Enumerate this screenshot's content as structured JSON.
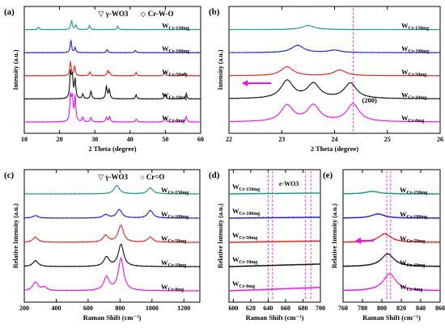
{
  "panels": [
    {
      "id": "a",
      "label": "(a)",
      "xlabel": "2 Theta (degree)",
      "ylabel": "Intensity (a.u.)",
      "xlim": [
        10,
        60
      ],
      "xticks": [
        10,
        20,
        30,
        40,
        50,
        60
      ],
      "legend": [
        {
          "symbol": "▽",
          "text": "γ-WO3"
        },
        {
          "symbol": "◇",
          "text": "Cr-W-O"
        }
      ]
    },
    {
      "id": "b",
      "label": "(b)",
      "xlabel": "2 Theta (degree)",
      "ylabel": "Intensity (a.u.)",
      "xlim": [
        22,
        26
      ],
      "xticks": [
        22,
        23,
        24,
        25,
        26
      ],
      "annotation": "(200)",
      "reference_line_x": 24.35
    },
    {
      "id": "c",
      "label": "(c)",
      "xlabel": "Raman Shift (cm⁻¹)",
      "ylabel": "Relative Intensity (a.u.)",
      "xlim": [
        200,
        1300
      ],
      "xticks": [
        200,
        400,
        600,
        800,
        1000,
        1200
      ],
      "legend": [
        {
          "symbol": "▽",
          "text": "γ-WO3"
        },
        {
          "symbol": "○",
          "text": "Cr=O"
        }
      ]
    },
    {
      "id": "d",
      "label": "(d)",
      "xlabel": "Raman Shift (cm⁻¹)",
      "ylabel": "Relative Intensity (a.u.)",
      "xlim": [
        595,
        700
      ],
      "xticks": [
        600,
        620,
        640,
        660,
        680,
        700
      ],
      "annotation": "ε-WO3",
      "reference_lines_x": [
        640,
        645,
        683,
        689
      ]
    },
    {
      "id": "e",
      "label": "(e)",
      "xlabel": "Raman Shift (cm⁻¹)",
      "ylabel": "Relative Intensity (a.u.)",
      "xlim": [
        760,
        860
      ],
      "xticks": [
        760,
        780,
        800,
        820,
        840,
        860
      ],
      "reference_lines_x": [
        805,
        809
      ]
    }
  ],
  "series_labels": [
    "W",
    "W",
    "W",
    "W",
    "W"
  ],
  "series_subscripts": [
    "Cr-150mg",
    "Cr-100mg",
    "Cr-50mg",
    "Cr-10mg",
    "Cr-0mg"
  ],
  "colors": {
    "Cr-150mg": "#1a9a8a",
    "Cr-100mg": "#1f1fe0",
    "Cr-50mg": "#ee2222",
    "Cr-10mg": "#111111",
    "Cr-0mg": "#ee11ee",
    "arrow": "#ee11ee",
    "refline": "#ee11ee"
  },
  "chart_data": [
    {
      "panel": "a",
      "type": "line",
      "xlabel": "2 Theta (degree)",
      "ylabel": "Intensity (a.u.)",
      "xlim": [
        10,
        60
      ],
      "series": [
        {
          "name": "WCr-150mg",
          "peaks": [
            [
              14,
              0.15
            ],
            [
              23.4,
              0.6
            ],
            [
              24.6,
              0.3
            ],
            [
              28.5,
              0.25
            ],
            [
              36.5,
              0.2
            ]
          ],
          "offset": 4
        },
        {
          "name": "WCr-100mg",
          "peaks": [
            [
              23.2,
              0.8
            ],
            [
              24.4,
              0.3
            ],
            [
              33.5,
              0.2
            ],
            [
              41.5,
              0.15
            ]
          ],
          "offset": 3
        },
        {
          "name": "WCr-50mg",
          "peaks": [
            [
              23.1,
              0.9
            ],
            [
              24.3,
              0.6
            ],
            [
              28.6,
              0.25
            ],
            [
              33.6,
              0.3
            ],
            [
              34.2,
              0.2
            ],
            [
              41.7,
              0.2
            ],
            [
              49.8,
              0.2
            ],
            [
              55.5,
              0.2
            ]
          ],
          "offset": 2
        },
        {
          "name": "WCr-10mg",
          "peaks": [
            [
              23.1,
              1.6
            ],
            [
              23.6,
              1.4
            ],
            [
              24.4,
              1.2
            ],
            [
              26.6,
              0.3
            ],
            [
              28.9,
              0.5
            ],
            [
              33.3,
              0.8
            ],
            [
              34.1,
              0.6
            ],
            [
              41.7,
              0.25
            ],
            [
              49.9,
              0.3
            ],
            [
              55.9,
              0.35
            ]
          ],
          "offset": 1
        },
        {
          "name": "WCr-0mg",
          "peaks": [
            [
              23.1,
              1.6
            ],
            [
              23.6,
              1.5
            ],
            [
              24.4,
              1.6
            ],
            [
              26.6,
              0.3
            ],
            [
              28.9,
              0.3
            ],
            [
              33.3,
              0.3
            ],
            [
              34.2,
              0.35
            ],
            [
              41.8,
              0.2
            ],
            [
              49.9,
              0.3
            ],
            [
              55.9,
              0.35
            ]
          ],
          "offset": 0
        }
      ]
    },
    {
      "panel": "b",
      "type": "line",
      "xlabel": "2 Theta (degree)",
      "ylabel": "Intensity (a.u.)",
      "xlim": [
        22,
        26
      ],
      "series": [
        {
          "name": "WCr-150mg",
          "peaks": [
            [
              23.5,
              0.25
            ]
          ],
          "offset": 4
        },
        {
          "name": "WCr-100mg",
          "peaks": [
            [
              23.3,
              0.45
            ],
            [
              24.0,
              0.15
            ]
          ],
          "offset": 3
        },
        {
          "name": "WCr-50mg",
          "peaks": [
            [
              23.1,
              0.55
            ],
            [
              24.1,
              0.35
            ]
          ],
          "offset": 2
        },
        {
          "name": "WCr-10mg",
          "peaks": [
            [
              23.1,
              1.1
            ],
            [
              23.6,
              0.9
            ],
            [
              24.3,
              0.95
            ]
          ],
          "offset": 1
        },
        {
          "name": "WCr-0mg",
          "peaks": [
            [
              23.1,
              1.0
            ],
            [
              23.6,
              1.0
            ],
            [
              24.35,
              1.1
            ]
          ],
          "offset": 0
        }
      ]
    },
    {
      "panel": "c",
      "type": "line",
      "xlabel": "Raman Shift (cm⁻¹)",
      "ylabel": "Relative Intensity (a.u.)",
      "xlim": [
        200,
        1300
      ],
      "series": [
        {
          "name": "WCr-150mg",
          "peaks": [
            [
              780,
              0.5
            ],
            [
              990,
              0.35
            ]
          ],
          "offset": 4
        },
        {
          "name": "WCr-100mg",
          "peaks": [
            [
              270,
              0.15
            ],
            [
              710,
              0.2
            ],
            [
              795,
              0.5
            ],
            [
              990,
              0.45
            ]
          ],
          "offset": 3
        },
        {
          "name": "WCr-50mg",
          "peaks": [
            [
              270,
              0.3
            ],
            [
              710,
              0.4
            ],
            [
              805,
              1.0
            ],
            [
              990,
              0.3
            ]
          ],
          "offset": 2
        },
        {
          "name": "WCr-10mg",
          "peaks": [
            [
              270,
              0.35
            ],
            [
              715,
              0.55
            ],
            [
              806,
              1.3
            ]
          ],
          "offset": 1
        },
        {
          "name": "WCr-0mg",
          "peaks": [
            [
              270,
              0.5
            ],
            [
              325,
              0.2
            ],
            [
              715,
              0.8
            ],
            [
              806,
              1.9
            ]
          ],
          "offset": 0
        }
      ]
    },
    {
      "panel": "d",
      "type": "line",
      "xlabel": "Raman Shift (cm⁻¹)",
      "ylabel": "Relative Intensity (a.u.)",
      "xlim": [
        595,
        700
      ],
      "series": [
        {
          "name": "WCr-150mg",
          "slope": 0.05,
          "offset": 4
        },
        {
          "name": "WCr-100mg",
          "slope": 0.05,
          "offset": 3
        },
        {
          "name": "WCr-50mg",
          "slope": 0.08,
          "offset": 2
        },
        {
          "name": "WCr-10mg",
          "slope": 0.15,
          "offset": 1
        },
        {
          "name": "WCr-0mg",
          "slope": 0.2,
          "offset": 0
        }
      ]
    },
    {
      "panel": "e",
      "type": "line",
      "xlabel": "Raman Shift (cm⁻¹)",
      "ylabel": "Relative Intensity (a.u.)",
      "xlim": [
        760,
        860
      ],
      "series": [
        {
          "name": "WCr-150mg",
          "peaks": [
            [
              790,
              0.15
            ]
          ],
          "offset": 4
        },
        {
          "name": "WCr-100mg",
          "peaks": [
            [
              796,
              0.25
            ]
          ],
          "offset": 3
        },
        {
          "name": "WCr-50mg",
          "peaks": [
            [
              803,
              0.5
            ]
          ],
          "offset": 2
        },
        {
          "name": "WCr-10mg",
          "peaks": [
            [
              806,
              0.75
            ]
          ],
          "offset": 1
        },
        {
          "name": "WCr-0mg",
          "peaks": [
            [
              808,
              1.0
            ]
          ],
          "offset": 0
        }
      ]
    }
  ]
}
